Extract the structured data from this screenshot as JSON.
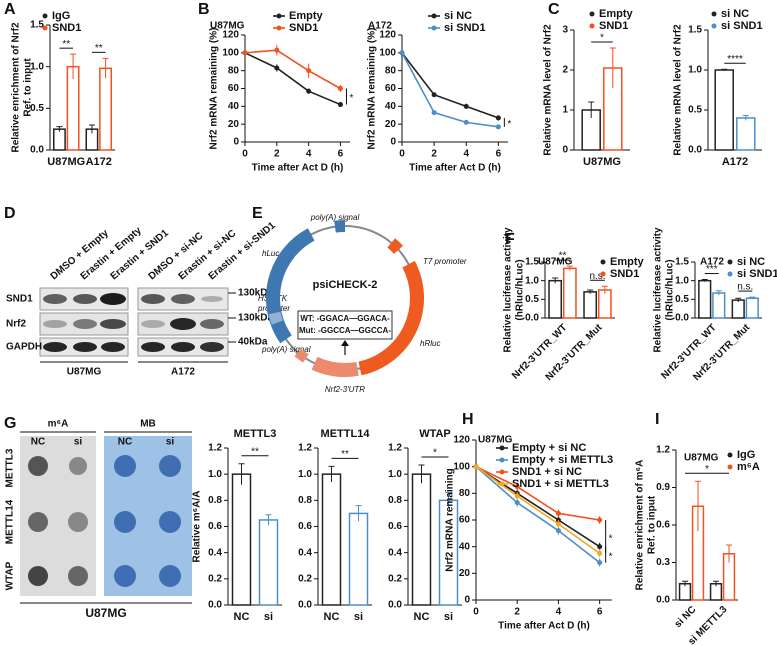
{
  "chart_data": [
    {
      "type": "bar",
      "panel": "A",
      "ylabel": [
        "Relative enrichment of Nrf2",
        "Ref. to input"
      ],
      "categories": [
        "U87MG",
        "A172"
      ],
      "series": [
        {
          "name": "IgG",
          "color": "#222222",
          "values": [
            0.25,
            0.25
          ],
          "errors": [
            0.03,
            0.05
          ]
        },
        {
          "name": "SND1",
          "color": "#f4511e",
          "values": [
            1.0,
            0.98
          ],
          "errors": [
            0.15,
            0.12
          ]
        }
      ],
      "ylim": [
        0,
        1.5
      ],
      "yticks": [
        {
          "value": 0,
          "label": "0.0"
        },
        0.5,
        {
          "value": 1,
          "label": "1.0"
        },
        1.5
      ],
      "legend": "upper left",
      "annotations": [
        "**",
        "**"
      ]
    },
    {
      "type": "line",
      "panel": "B",
      "title": "U87MG",
      "ylabel": [
        "Nrf2 mRNA remaining (%)"
      ],
      "xlabel": "Time after Act D (h)",
      "x": [
        0,
        2,
        4,
        6
      ],
      "series": [
        {
          "name": "Empty",
          "color": "#222222",
          "values": [
            100,
            83,
            57,
            42
          ],
          "errors": [
            0,
            4,
            3,
            2
          ]
        },
        {
          "name": "SND1",
          "color": "#f4511e",
          "values": [
            100,
            103,
            80,
            60
          ],
          "errors": [
            0,
            6,
            8,
            4
          ]
        }
      ],
      "xlim": [
        0,
        6.6
      ],
      "xticks": [
        0,
        2,
        4,
        6
      ],
      "ylim": [
        0,
        120
      ],
      "yticks": [
        0,
        20,
        40,
        60,
        80,
        100,
        120
      ],
      "legend": "upper right",
      "annotations": [
        "*"
      ]
    },
    {
      "type": "line",
      "title": "A172",
      "ylabel": [
        "Nrf2 mRNA remaining (%)"
      ],
      "xlabel": "Time after Act D (h)",
      "x": [
        0,
        2,
        4,
        6
      ],
      "series": [
        {
          "name": "si NC",
          "color": "#222222",
          "values": [
            100,
            53,
            40,
            27
          ],
          "errors": [
            0,
            2,
            3,
            3
          ]
        },
        {
          "name": "si SND1",
          "color": "#4a8fc9",
          "values": [
            100,
            33,
            22,
            17
          ],
          "errors": [
            0,
            2,
            2,
            1
          ]
        }
      ],
      "xlim": [
        0,
        6.6
      ],
      "xticks": [
        0,
        2,
        4,
        6
      ],
      "ylim": [
        0,
        120
      ],
      "yticks": [
        0,
        20,
        40,
        60,
        80,
        100,
        120
      ],
      "legend": "upper right",
      "annotations": [
        "*"
      ]
    },
    {
      "type": "bar",
      "panel": "C",
      "ylabel": [
        "Relative mRNA level of Nrf2"
      ],
      "categories": [
        "U87MG"
      ],
      "series": [
        {
          "name": "Empty",
          "color": "#222222",
          "values": [
            1.0
          ],
          "errors": [
            0.2
          ]
        },
        {
          "name": "SND1",
          "color": "#f4511e",
          "values": [
            2.05
          ],
          "errors": [
            0.5
          ]
        }
      ],
      "ylim": [
        0,
        3
      ],
      "yticks": [
        0,
        1,
        2,
        3
      ],
      "legend": "upper right",
      "annotations": [
        "*"
      ]
    },
    {
      "type": "bar",
      "ylabel": [
        "Relative mRNA level of Nrf2"
      ],
      "categories": [
        "A172"
      ],
      "series": [
        {
          "name": "si NC",
          "color": "#222222",
          "values": [
            1.0
          ],
          "errors": [
            0.01
          ]
        },
        {
          "name": "si SND1",
          "color": "#4a8fc9",
          "values": [
            0.4
          ],
          "errors": [
            0.03
          ]
        }
      ],
      "ylim": [
        0,
        1.5
      ],
      "yticks": [
        {
          "value": 0,
          "label": "0.0"
        },
        0.5,
        {
          "value": 1,
          "label": "1.0"
        },
        1.5
      ],
      "legend": "upper right",
      "annotations": [
        "****"
      ]
    },
    {
      "type": "bar",
      "panel": "F",
      "title": "U87MG",
      "ylabel": [
        "Relative luciferase activity",
        "(hRluc/hLuc)"
      ],
      "categories": [
        "Nrf2-3'UTR_WT",
        "Nrf2-3'UTR_Mut"
      ],
      "series": [
        {
          "name": "Empty",
          "color": "#222222",
          "values": [
            1.0,
            0.7
          ],
          "errors": [
            0.07,
            0.05
          ]
        },
        {
          "name": "SND1",
          "color": "#f4511e",
          "values": [
            1.33,
            0.75
          ],
          "errors": [
            0.06,
            0.1
          ]
        }
      ],
      "ylim": [
        0,
        1.5
      ],
      "yticks": [
        {
          "value": 0,
          "label": "0.0"
        },
        0.5,
        {
          "value": 1,
          "label": "1.0"
        },
        1.5
      ],
      "legend": "upper right",
      "annotations": [
        "**",
        "n.s."
      ]
    },
    {
      "type": "bar",
      "title": "A172",
      "ylabel": [
        "Relative luciferase activity",
        "(hRluc/hLuc)"
      ],
      "categories": [
        "Nrf2-3'UTR_WT",
        "Nrf2-3'UTR_Mut"
      ],
      "series": [
        {
          "name": "si NC",
          "color": "#222222",
          "values": [
            1.0,
            0.48
          ],
          "errors": [
            0.03,
            0.05
          ]
        },
        {
          "name": "si SND1",
          "color": "#4a8fc9",
          "values": [
            0.67,
            0.53
          ],
          "errors": [
            0.06,
            0.03
          ]
        }
      ],
      "ylim": [
        0,
        1.5
      ],
      "yticks": [
        {
          "value": 0,
          "label": "0.0"
        },
        0.5,
        {
          "value": 1,
          "label": "1.0"
        },
        1.5
      ],
      "legend": "upper right",
      "annotations": [
        "***",
        "n.s."
      ]
    },
    {
      "type": "bar",
      "title": "METTL3",
      "ylabel": [
        "Relative m⁶A/A"
      ],
      "categories": [
        "NC",
        "si"
      ],
      "series": [
        {
          "colors": [
            "#222222",
            "#4a8fc9"
          ],
          "values": [
            1.0,
            0.65
          ],
          "errors": [
            0.08,
            0.04
          ]
        }
      ],
      "ylim": [
        0,
        1.2
      ],
      "yticks": [
        {
          "value": 0,
          "label": "0.0"
        },
        0.2,
        0.4,
        0.6,
        0.8,
        {
          "value": 1,
          "label": "1.0"
        },
        1.2
      ],
      "annotations": [
        "**"
      ]
    },
    {
      "type": "bar",
      "title": "METTL14",
      "categories": [
        "NC",
        "si"
      ],
      "series": [
        {
          "colors": [
            "#222222",
            "#4a8fc9"
          ],
          "values": [
            1.0,
            0.7
          ],
          "errors": [
            0.06,
            0.06
          ]
        }
      ],
      "ylim": [
        0,
        1.2
      ],
      "yticks": [
        {
          "value": 0,
          "label": "0.0"
        },
        0.2,
        0.4,
        0.6,
        0.8,
        {
          "value": 1,
          "label": "1.0"
        },
        1.2
      ],
      "annotations": [
        "**"
      ]
    },
    {
      "type": "bar",
      "title": "WTAP",
      "categories": [
        "NC",
        "si"
      ],
      "series": [
        {
          "colors": [
            "#222222",
            "#4a8fc9"
          ],
          "values": [
            1.0,
            0.8
          ],
          "errors": [
            0.07,
            0.06
          ]
        }
      ],
      "ylim": [
        0,
        1.2
      ],
      "yticks": [
        {
          "value": 0,
          "label": "0.0"
        },
        0.2,
        0.4,
        0.6,
        0.8,
        {
          "value": 1,
          "label": "1.0"
        },
        1.2
      ],
      "annotations": [
        "*"
      ]
    },
    {
      "type": "line",
      "panel": "H",
      "title": "U87MG",
      "ylabel": [
        "Nrf2 mRNA remaining"
      ],
      "xlabel": "Time after Act D (h)",
      "x": [
        0,
        2,
        4,
        6
      ],
      "series": [
        {
          "name": "Empty + si NC",
          "color": "#222222",
          "values": [
            100,
            80,
            60,
            40
          ],
          "errors": [
            0,
            3,
            3,
            3
          ]
        },
        {
          "name": "Empty + si METTL3",
          "color": "#4a8fc9",
          "values": [
            100,
            73,
            52,
            28
          ],
          "errors": [
            0,
            3,
            3,
            3
          ]
        },
        {
          "name": "SND1 + si NC",
          "color": "#f4511e",
          "values": [
            100,
            85,
            65,
            60
          ],
          "errors": [
            0,
            3,
            3,
            3
          ]
        },
        {
          "name": "SND1 + si METTL3",
          "color": "#f5a623",
          "values": [
            100,
            78,
            57,
            35
          ],
          "errors": [
            0,
            3,
            3,
            3
          ]
        }
      ],
      "xlim": [
        0,
        6.6
      ],
      "xticks": [
        0,
        2,
        4,
        6
      ],
      "ylim": [
        0,
        120
      ],
      "yticks": [
        0,
        20,
        40,
        60,
        80,
        100,
        120
      ],
      "legend": "upper right",
      "annotations": [
        "*",
        "*"
      ]
    },
    {
      "type": "bar",
      "panel": "I",
      "title": "U87MG",
      "ylabel": [
        "Relative enrichment of m⁶A",
        "Ref. to input"
      ],
      "categories": [
        "si NC",
        "si METTL3"
      ],
      "series": [
        {
          "name": "IgG",
          "color": "#222222",
          "values": [
            0.13,
            0.13
          ],
          "errors": [
            0.02,
            0.02
          ]
        },
        {
          "name": "m⁶A",
          "color": "#f4511e",
          "values": [
            0.75,
            0.37
          ],
          "errors": [
            0.2,
            0.07
          ]
        }
      ],
      "ylim": [
        0,
        1.2
      ],
      "yticks": [
        {
          "value": 0,
          "label": "0.0"
        },
        0.3,
        0.6,
        0.9,
        1.2
      ],
      "legend": "upper right",
      "annotations": [
        "*"
      ]
    }
  ],
  "blot_d": {
    "panel": "D",
    "lanes": [
      "DMSO + Empty",
      "Erastin + Empty",
      "Erastin + SND1",
      "DMSO + si-NC",
      "Erastin + si-NC",
      "Erastin + si-SND1"
    ],
    "proteins": [
      "SND1",
      "Nrf2",
      "GAPDH"
    ],
    "markers": [
      "130kDa",
      "130kDa",
      "40kDa"
    ],
    "cell_lines": [
      "U87MG",
      "A172"
    ]
  },
  "plasmid_e": {
    "panel": "E",
    "name": "psiCHECK-2",
    "poly_a_top": "poly(A) signal",
    "t7": "T7 promoter",
    "hluc": "hLuc",
    "hsv": [
      "HSV-TK",
      "promoter"
    ],
    "hrluc": "hRluc",
    "poly_a_bottom": "poly(A) signal",
    "utr": "Nrf2-3'UTR",
    "wt": "WT: -GGACA—GGACA-",
    "mut": "Mut: -GGCCA—GGCCA-"
  },
  "dotblot_g": {
    "panel": "G",
    "stains": [
      "m⁶A",
      "MB"
    ],
    "columns": [
      "NC",
      "si",
      "NC",
      "si"
    ],
    "rows": [
      "METTL3",
      "METTL14",
      "WTAP"
    ],
    "cell_line": "U87MG"
  }
}
